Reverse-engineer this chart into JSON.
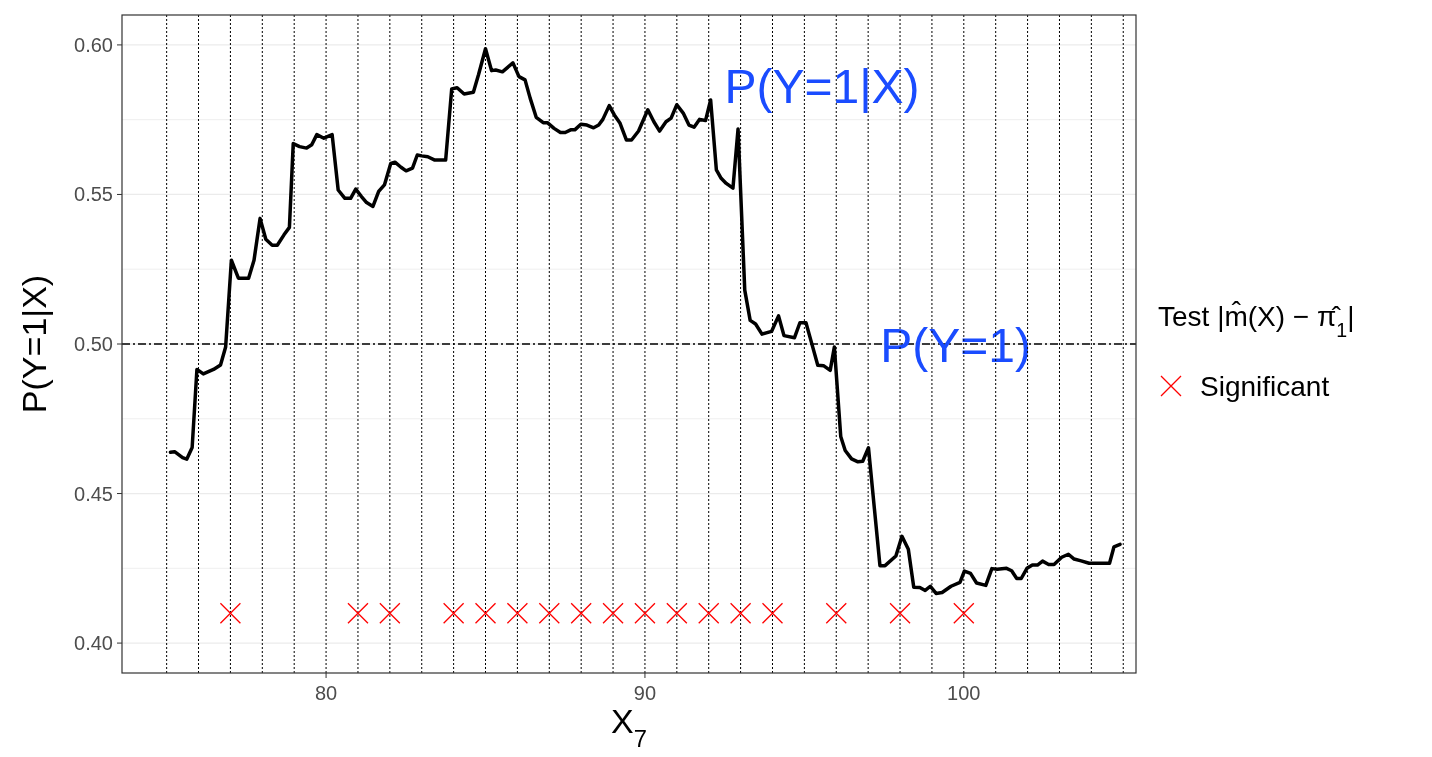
{
  "chart_data": {
    "type": "line",
    "xlabel": "X$_{7}$",
    "ylabel": "P(Y=1|X)",
    "legend_title": "Test |m̂(X) − π̂$_{1}$|",
    "xlim": [
      73.6,
      105.4
    ],
    "xticks": [
      80,
      90,
      100
    ],
    "ylim": [
      0.39,
      0.61
    ],
    "yticks": [
      {
        "value": 0.4,
        "label": "0.40"
      },
      {
        "value": 0.425,
        "label": null
      },
      0.45,
      {
        "value": 0.475,
        "label": null
      },
      {
        "value": 0.5,
        "label": "0.50"
      },
      {
        "value": 0.525,
        "label": null
      },
      0.55,
      {
        "value": 0.575,
        "label": null
      },
      {
        "value": 0.6,
        "label": "0.60"
      }
    ],
    "grid": "y",
    "legend": "right",
    "series": [
      {
        "color": "#000000",
        "marker": "none",
        "x": [
          75.12,
          75.25,
          75.5,
          75.63,
          75.8,
          75.95,
          76.15,
          76.47,
          76.69,
          76.85,
          77.03,
          77.25,
          77.57,
          77.74,
          77.93,
          78.11,
          78.31,
          78.47,
          78.68,
          78.85,
          78.97,
          79.17,
          79.39,
          79.55,
          79.71,
          79.93,
          80.19,
          80.38,
          80.59,
          80.77,
          80.93,
          81.11,
          81.27,
          81.47,
          81.65,
          81.83,
          82.03,
          82.16,
          82.35,
          82.51,
          82.71,
          82.86,
          83.0,
          83.19,
          83.41,
          83.75,
          83.94,
          84.11,
          84.33,
          84.62,
          84.78,
          85.0,
          85.19,
          85.32,
          85.53,
          85.86,
          86.05,
          86.24,
          86.4,
          86.59,
          86.81,
          86.94,
          87.15,
          87.35,
          87.5,
          87.67,
          87.8,
          87.99,
          88.18,
          88.39,
          88.55,
          88.68,
          88.88,
          89.04,
          89.22,
          89.42,
          89.58,
          89.8,
          90.09,
          90.28,
          90.46,
          90.66,
          90.82,
          91.0,
          91.2,
          91.38,
          91.54,
          91.71,
          91.9,
          92.06,
          92.24,
          92.39,
          92.55,
          92.76,
          92.92,
          93.13,
          93.3,
          93.47,
          93.67,
          93.97,
          94.19,
          94.36,
          94.69,
          94.86,
          95.05,
          95.23,
          95.42,
          95.61,
          95.81,
          95.94,
          96.14,
          96.28,
          96.48,
          96.68,
          96.83,
          97.01,
          97.37,
          97.53,
          97.87,
          98.06,
          98.26,
          98.43,
          98.62,
          98.79,
          98.95,
          99.13,
          99.32,
          99.6,
          99.88,
          100.02,
          100.21,
          100.4,
          100.69,
          100.88,
          101.05,
          101.34,
          101.5,
          101.66,
          101.8,
          101.98,
          102.15,
          102.31,
          102.47,
          102.66,
          102.83,
          103.07,
          103.28,
          103.46,
          103.68,
          103.93,
          104.57,
          104.71,
          104.9
        ],
        "values": [
          0.4638,
          0.464,
          0.462,
          0.4615,
          0.4654,
          0.4915,
          0.49,
          0.4915,
          0.493,
          0.499,
          0.528,
          0.522,
          0.522,
          0.528,
          0.542,
          0.535,
          0.533,
          0.533,
          0.5365,
          0.539,
          0.567,
          0.566,
          0.5655,
          0.5666,
          0.57,
          0.5688,
          0.57,
          0.5515,
          0.5487,
          0.5487,
          0.5518,
          0.5493,
          0.5473,
          0.546,
          0.551,
          0.5532,
          0.5604,
          0.5608,
          0.5591,
          0.5579,
          0.5588,
          0.5632,
          0.5629,
          0.5626,
          0.5615,
          0.5615,
          0.5853,
          0.5857,
          0.5836,
          0.5842,
          0.59,
          0.5987,
          0.5914,
          0.5916,
          0.591,
          0.594,
          0.5894,
          0.5883,
          0.5822,
          0.5758,
          0.574,
          0.574,
          0.5721,
          0.5707,
          0.5707,
          0.5716,
          0.5716,
          0.5735,
          0.5732,
          0.5723,
          0.5732,
          0.5751,
          0.5797,
          0.5766,
          0.5738,
          0.5682,
          0.5682,
          0.5712,
          0.5783,
          0.5743,
          0.5712,
          0.5743,
          0.5755,
          0.58,
          0.5772,
          0.5732,
          0.5725,
          0.5751,
          0.5747,
          0.5816,
          0.5582,
          0.5554,
          0.5537,
          0.5521,
          0.5719,
          0.518,
          0.5079,
          0.5067,
          0.5033,
          0.5042,
          0.5094,
          0.5028,
          0.5021,
          0.5071,
          0.5071,
          0.5002,
          0.4929,
          0.4927,
          0.4912,
          0.499,
          0.4691,
          0.4644,
          0.4616,
          0.4606,
          0.4608,
          0.4653,
          0.4259,
          0.4259,
          0.4291,
          0.4357,
          0.4314,
          0.4187,
          0.4186,
          0.4176,
          0.419,
          0.4166,
          0.4169,
          0.419,
          0.4203,
          0.4241,
          0.4233,
          0.4201,
          0.4193,
          0.4249,
          0.4247,
          0.425,
          0.4242,
          0.4216,
          0.4216,
          0.425,
          0.4261,
          0.4261,
          0.4274,
          0.4263,
          0.4263,
          0.4287,
          0.4297,
          0.4281,
          0.4275,
          0.4267,
          0.4267,
          0.4322,
          0.433
        ]
      },
      {
        "type": "scatter",
        "name": "Significant",
        "color": "#ff0000",
        "marker": "cross",
        "x": [
          77,
          81,
          82,
          84,
          85,
          86,
          87,
          88,
          89,
          90,
          91,
          92,
          93,
          94,
          96,
          98,
          100
        ],
        "values": [
          0.41,
          0.41,
          0.41,
          0.41,
          0.41,
          0.41,
          0.41,
          0.41,
          0.41,
          0.41,
          0.41,
          0.41,
          0.41,
          0.41,
          0.41,
          0.41,
          0.41
        ]
      }
    ],
    "ref_lines": [
      {
        "axis": "y",
        "value": 0.5,
        "label": "P(Y=1)",
        "color": "#000000",
        "line_style": "dashdot"
      },
      {
        "axis": "x",
        "value": 75,
        "color": "#000000",
        "line_style": "dotted"
      },
      {
        "axis": "x",
        "value": 76,
        "color": "#000000",
        "line_style": "dotted"
      },
      {
        "axis": "x",
        "value": 77,
        "color": "#000000",
        "line_style": "dotted"
      },
      {
        "axis": "x",
        "value": 78,
        "color": "#000000",
        "line_style": "dotted"
      },
      {
        "axis": "x",
        "value": 79,
        "color": "#000000",
        "line_style": "dotted"
      },
      {
        "axis": "x",
        "value": 80,
        "color": "#000000",
        "line_style": "dotted"
      },
      {
        "axis": "x",
        "value": 81,
        "color": "#000000",
        "line_style": "dotted"
      },
      {
        "axis": "x",
        "value": 82,
        "color": "#000000",
        "line_style": "dotted"
      },
      {
        "axis": "x",
        "value": 83,
        "color": "#000000",
        "line_style": "dotted"
      },
      {
        "axis": "x",
        "value": 84,
        "color": "#000000",
        "line_style": "dotted"
      },
      {
        "axis": "x",
        "value": 85,
        "color": "#000000",
        "line_style": "dotted"
      },
      {
        "axis": "x",
        "value": 86,
        "color": "#000000",
        "line_style": "dotted"
      },
      {
        "axis": "x",
        "value": 87,
        "color": "#000000",
        "line_style": "dotted"
      },
      {
        "axis": "x",
        "value": 88,
        "color": "#000000",
        "line_style": "dotted"
      },
      {
        "axis": "x",
        "value": 89,
        "color": "#000000",
        "line_style": "dotted"
      },
      {
        "axis": "x",
        "value": 90,
        "color": "#000000",
        "line_style": "dotted"
      },
      {
        "axis": "x",
        "value": 91,
        "color": "#000000",
        "line_style": "dotted"
      },
      {
        "axis": "x",
        "value": 92,
        "color": "#000000",
        "line_style": "dotted"
      },
      {
        "axis": "x",
        "value": 93,
        "color": "#000000",
        "line_style": "dotted"
      },
      {
        "axis": "x",
        "value": 94,
        "color": "#000000",
        "line_style": "dotted"
      },
      {
        "axis": "x",
        "value": 95,
        "color": "#000000",
        "line_style": "dotted"
      },
      {
        "axis": "x",
        "value": 96,
        "color": "#000000",
        "line_style": "dotted"
      },
      {
        "axis": "x",
        "value": 97,
        "color": "#000000",
        "line_style": "dotted"
      },
      {
        "axis": "x",
        "value": 98,
        "color": "#000000",
        "line_style": "dotted"
      },
      {
        "axis": "x",
        "value": 99,
        "color": "#000000",
        "line_style": "dotted"
      },
      {
        "axis": "x",
        "value": 100,
        "color": "#000000",
        "line_style": "dotted"
      },
      {
        "axis": "x",
        "value": 101,
        "color": "#000000",
        "line_style": "dotted"
      },
      {
        "axis": "x",
        "value": 102,
        "color": "#000000",
        "line_style": "dotted"
      },
      {
        "axis": "x",
        "value": 103,
        "color": "#000000",
        "line_style": "dotted"
      },
      {
        "axis": "x",
        "value": 104,
        "color": "#000000",
        "line_style": "dotted"
      },
      {
        "axis": "x",
        "value": 105,
        "color": "#000000",
        "line_style": "dotted"
      }
    ],
    "annotations": [
      "P(Y=1|X)"
    ]
  }
}
